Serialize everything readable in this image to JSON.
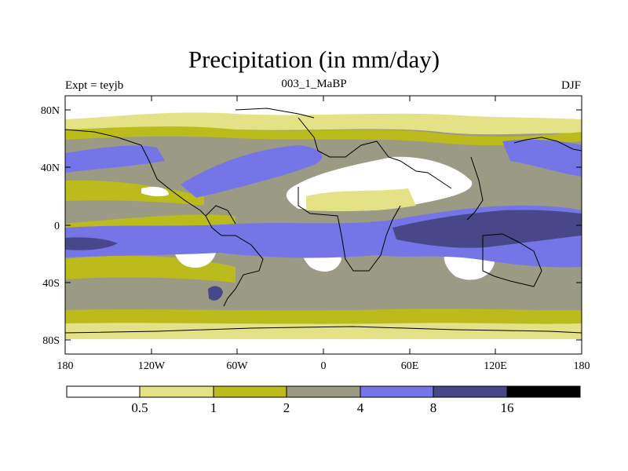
{
  "title": "Precipitation (in mm/day)",
  "left_subtitle": "Expt = teyjb",
  "center_subtitle": "003_1_MaBP",
  "right_subtitle": "DJF",
  "lat_labels": [
    "80N",
    "40N",
    "0",
    "40S",
    "80S"
  ],
  "lon_labels": [
    "180",
    "120W",
    "60W",
    "0",
    "60E",
    "120E",
    "180"
  ],
  "legend": {
    "labels": [
      "0.5",
      "1",
      "2",
      "4",
      "8",
      "16"
    ],
    "colors": [
      "#ffffff",
      "#e3e287",
      "#bcbb1c",
      "#9a9a85",
      "#7575e7",
      "#474789",
      "#000000"
    ]
  }
}
